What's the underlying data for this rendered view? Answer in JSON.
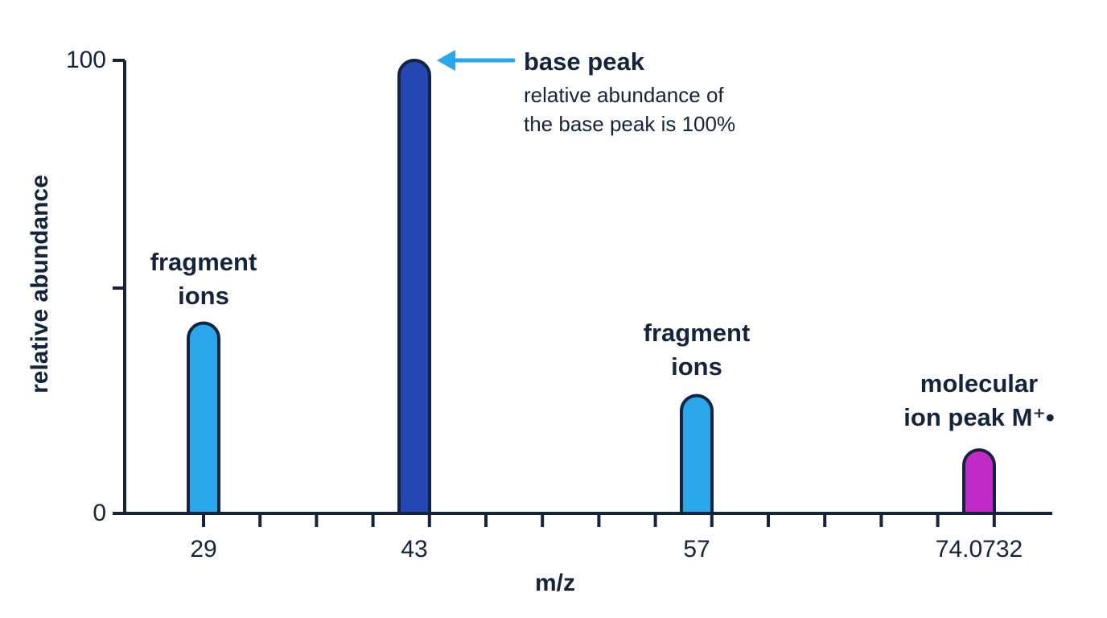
{
  "chart_data": {
    "type": "bar",
    "xlabel": "m/z",
    "ylabel": "relative abundance",
    "ylim": [
      0,
      100
    ],
    "y_ticks": [
      "0",
      "100"
    ],
    "categories": [
      "29",
      "43",
      "57",
      "74.0732"
    ],
    "values": [
      42,
      100,
      26,
      14
    ],
    "bar_colors": [
      "#2aa7ea",
      "#2547b3",
      "#2aa7ea",
      "#c22ac8"
    ],
    "axis_color": "#15243d",
    "arrow_color": "#2aa7ea",
    "annotations": {
      "base_peak_title": "base peak",
      "base_peak_line1": "relative abundance of",
      "base_peak_line2": "the base peak is 100%",
      "fragment_left_line1": "fragment",
      "fragment_left_line2": "ions",
      "fragment_right_line1": "fragment",
      "fragment_right_line2": "ions",
      "molecular_line1": "molecular",
      "molecular_line2": "ion peak M⁺•"
    }
  }
}
